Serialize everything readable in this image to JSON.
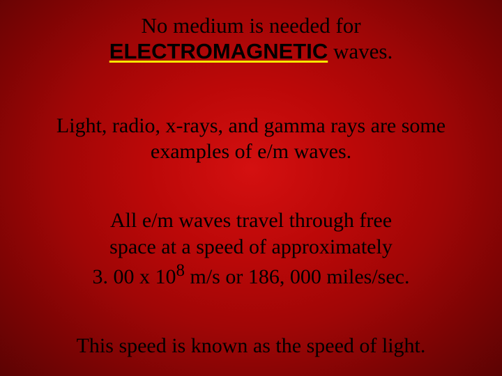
{
  "colors": {
    "text": "#000000",
    "underline": "#f7e600",
    "bg_center": "#d41010",
    "bg_edge": "#5c0303"
  },
  "fonts": {
    "body": "Comic Sans MS",
    "em": "Arial",
    "size_main": 30,
    "size_title": 31
  },
  "p1": {
    "pre": "No medium is needed for ",
    "em": "ELECTROMAGNETIC",
    "post": " waves."
  },
  "p2": "Light, radio, x-rays, and gamma rays are some examples of e/m waves.",
  "p3": {
    "l1": "All e/m waves travel through free",
    "l2": "space at a speed of approximately",
    "l3a": "3. 00 x 10",
    "l3exp": "8",
    "l3b": " m/s or 186, 000 miles/sec."
  },
  "p4": {
    "a": "This speed is known as the",
    "b": "speed of light."
  }
}
